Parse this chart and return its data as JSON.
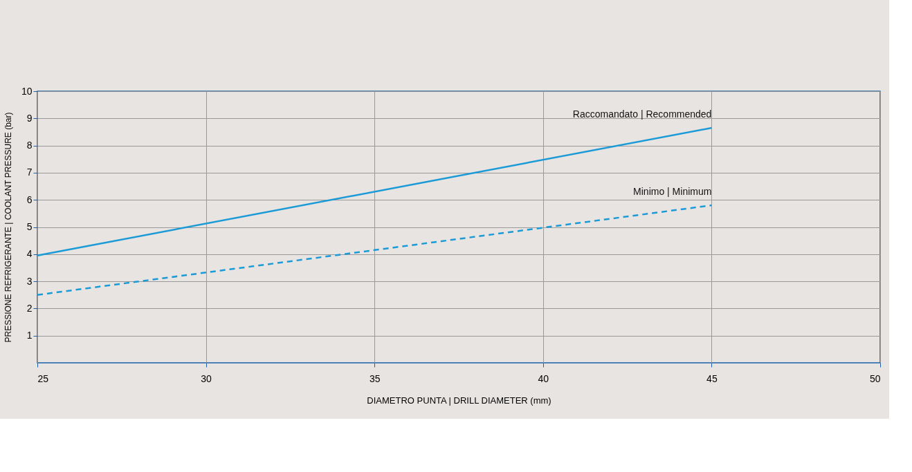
{
  "chart_data": {
    "type": "line",
    "xlabel": "DIAMETRO PUNTA | DRILL DIAMETER (mm)",
    "ylabel": "PRESSIONE REFRIGERANTE | COOLANT PRESSURE (bar)",
    "x": [
      25,
      45
    ],
    "series": [
      {
        "name": "Raccomandato | Recommended",
        "color": "#1a9ad6",
        "values": [
          3.95,
          8.65
        ],
        "line_style": "solid"
      },
      {
        "name": "Minimo | Minimum",
        "color": "#1a9ad6",
        "values": [
          2.5,
          5.8
        ],
        "line_style": "dashed"
      }
    ],
    "xlim": [
      25,
      50
    ],
    "xticks": [
      25,
      30,
      35,
      40,
      45,
      50
    ],
    "ylim": [
      0,
      10
    ],
    "yticks": [
      1,
      2,
      3,
      4,
      5,
      6,
      7,
      8,
      9,
      10
    ],
    "grid": true,
    "legend": false,
    "marker": "none"
  }
}
